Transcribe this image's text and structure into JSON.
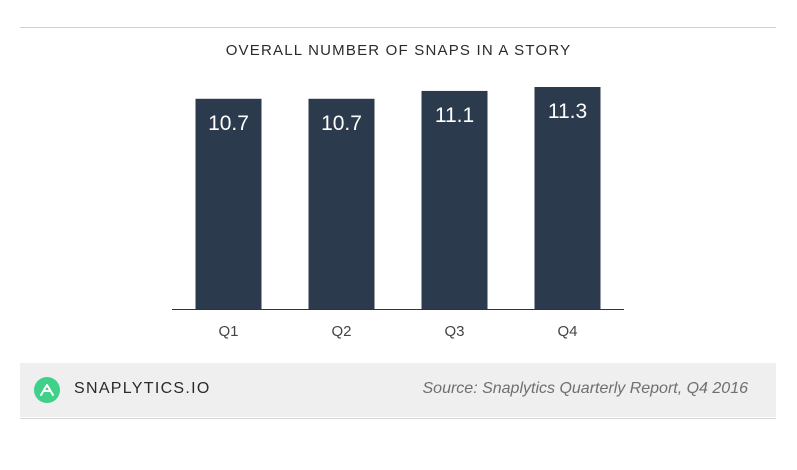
{
  "chart_data": {
    "type": "bar",
    "title": "OVERALL NUMBER OF SNAPS IN A STORY",
    "categories": [
      "Q1",
      "Q2",
      "Q3",
      "Q4"
    ],
    "values": [
      10.7,
      10.7,
      11.1,
      11.3
    ],
    "data_labels": [
      "10.7",
      "10.7",
      "11.1",
      "11.3"
    ],
    "bar_color": "#2c3a4d",
    "label_color": "#ffffff",
    "grid": false,
    "legend": "none"
  },
  "footer": {
    "brand": "SNAPLYTICS.IO",
    "logo_icon": "snaplytics-logo-icon",
    "logo_color": "#3fd08a",
    "source": "Source: Snaplytics Quarterly Report, Q4 2016"
  }
}
